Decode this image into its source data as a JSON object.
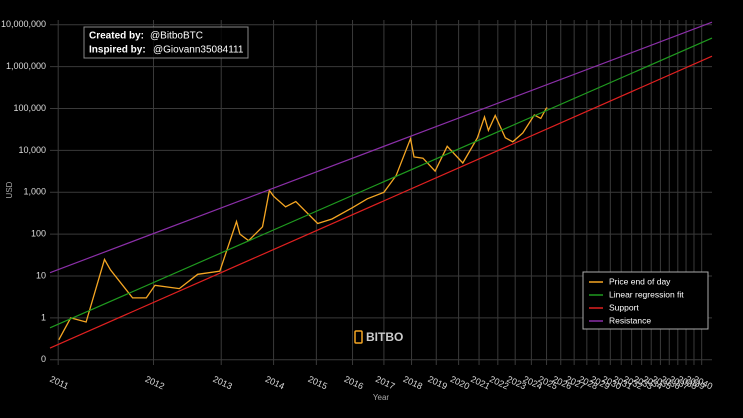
{
  "chart_data": {
    "type": "line",
    "log_x": true,
    "log_y": true,
    "grid": true,
    "legend": "lower right",
    "x_label": "Year",
    "y_label": "USD",
    "annotations": [
      {
        "label": "Created by:",
        "text": "@BitboBTC"
      },
      {
        "label": "Inspired by:",
        "text": "@Giovann35084111"
      }
    ],
    "logo": "BITBO",
    "xlim": [
      703,
      11830
    ],
    "ylim": [
      0.075,
      13000000
    ],
    "xticks": [
      {
        "value": 728,
        "label": "2011"
      },
      {
        "value": 1093,
        "label": "2012"
      },
      {
        "value": 1459,
        "label": "2013"
      },
      {
        "value": 1824,
        "label": "2014"
      },
      {
        "value": 2189,
        "label": "2015"
      },
      {
        "value": 2554,
        "label": "2016"
      },
      {
        "value": 2920,
        "label": "2017"
      },
      {
        "value": 3285,
        "label": "2018"
      },
      {
        "value": 3650,
        "label": "2019"
      },
      {
        "value": 4015,
        "label": "2020"
      },
      {
        "value": 4381,
        "label": "2021"
      },
      {
        "value": 4746,
        "label": "2022"
      },
      {
        "value": 5111,
        "label": "2023"
      },
      {
        "value": 5476,
        "label": "2024"
      },
      {
        "value": 5842,
        "label": "2025"
      },
      {
        "value": 6207,
        "label": "2026"
      },
      {
        "value": 6572,
        "label": "2027"
      },
      {
        "value": 6937,
        "label": "2028"
      },
      {
        "value": 7303,
        "label": "2029"
      },
      {
        "value": 7668,
        "label": "2030"
      },
      {
        "value": 8033,
        "label": "2031"
      },
      {
        "value": 8398,
        "label": "2032"
      },
      {
        "value": 8764,
        "label": "2033"
      },
      {
        "value": 9129,
        "label": "2034"
      },
      {
        "value": 9494,
        "label": "2035"
      },
      {
        "value": 9859,
        "label": "2036"
      },
      {
        "value": 10225,
        "label": "2037"
      },
      {
        "value": 10590,
        "label": "2038"
      },
      {
        "value": 10955,
        "label": "2039"
      },
      {
        "value": 11320,
        "label": "2040"
      }
    ],
    "yticks": [
      {
        "value": 0.1,
        "label": "0"
      },
      1,
      10,
      100,
      {
        "value": 1000,
        "label": "1,000"
      },
      {
        "value": 10000,
        "label": "10,000"
      },
      {
        "value": 100000,
        "label": "100,000"
      },
      {
        "value": 1000000,
        "label": "1,000,000"
      },
      {
        "value": 10000000,
        "label": "10,000,000"
      }
    ],
    "series": [
      {
        "name": "Price end of day",
        "color": "#f5a623",
        "x": [
          730,
          768,
          820,
          887,
          910,
          1000,
          1060,
          1100,
          1220,
          1320,
          1450,
          1557,
          1580,
          1640,
          1740,
          1792,
          1825,
          1920,
          2005,
          2202,
          2340,
          2555,
          2720,
          2920,
          3075,
          3270,
          3320,
          3450,
          3632,
          3825,
          4087,
          4350,
          4483,
          4560,
          4693,
          4900,
          5060,
          5280,
          5545,
          5700,
          5830,
          5860
        ],
        "values": [
          0.3,
          1.0,
          0.8,
          25,
          14,
          3,
          3,
          6,
          5,
          11,
          13,
          200,
          100,
          70,
          150,
          1100,
          800,
          450,
          600,
          180,
          230,
          430,
          700,
          1000,
          2500,
          19000,
          7000,
          6500,
          3200,
          12500,
          5000,
          20000,
          63000,
          30000,
          68000,
          20000,
          16000,
          26000,
          70000,
          58000,
          100000,
          105000
        ]
      },
      {
        "name": "Linear regression fit",
        "color": "#1f9a1f",
        "x": [
          703,
          11830
        ],
        "values": [
          0.58,
          4800000
        ]
      },
      {
        "name": "Support",
        "color": "#e02020",
        "x": [
          703,
          11830
        ],
        "values": [
          0.19,
          1780000
        ]
      },
      {
        "name": "Resistance",
        "color": "#8b2fa8",
        "x": [
          703,
          11830
        ],
        "values": [
          12,
          11500000
        ]
      }
    ]
  }
}
